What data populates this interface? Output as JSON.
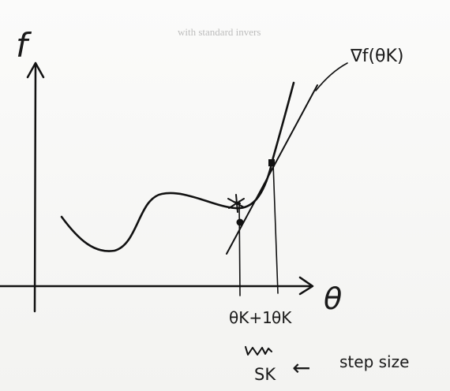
{
  "labels": {
    "y_axis": "f",
    "x_axis": "θ",
    "gradient": "∇f(θK)",
    "theta_k1": "θK+1",
    "theta_k": "θK",
    "step_symbol": "SK",
    "step_size": "step size",
    "arrow": "←"
  },
  "background_text": "with standard invers",
  "colors": {
    "ink": "#111111",
    "paper": "#f6f6f4",
    "bleed": "#bdbdbd"
  },
  "icons": {
    "star": "star-icon"
  }
}
